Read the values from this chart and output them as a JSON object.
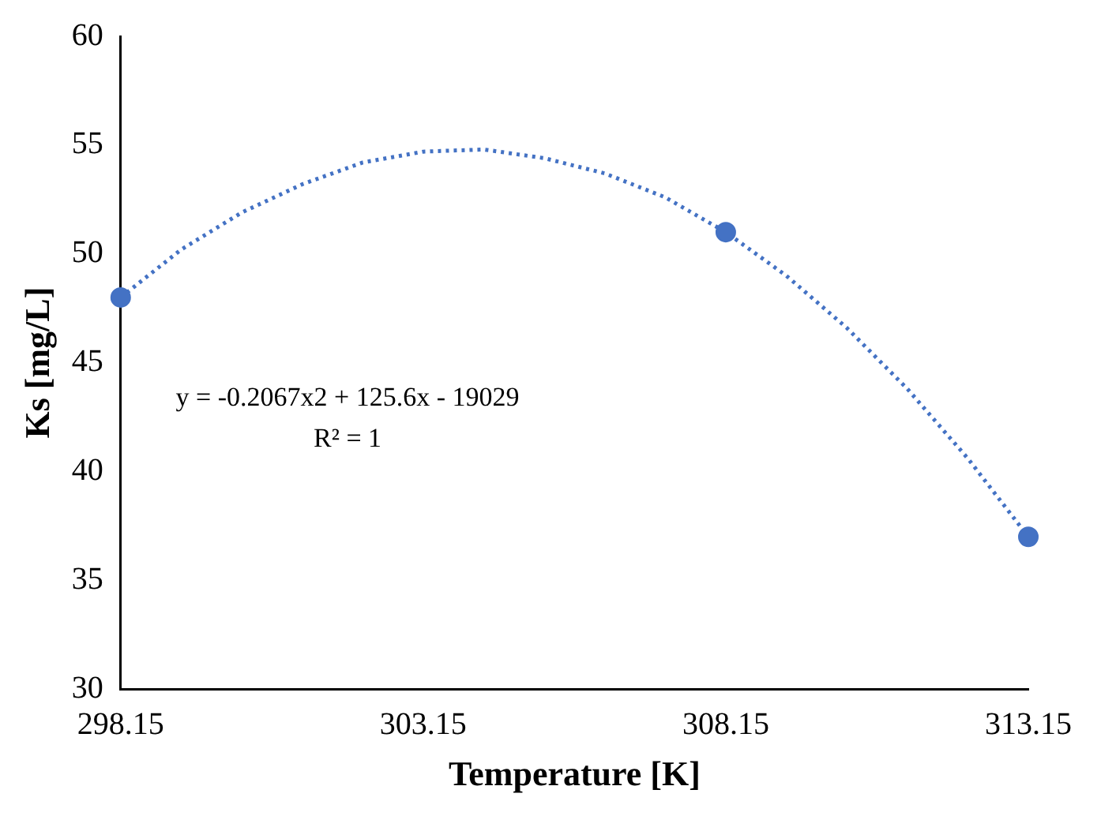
{
  "chart_data": {
    "type": "scatter",
    "xlabel": "Temperature [K]",
    "ylabel": "Ks [mg/L]",
    "xlim": [
      298.15,
      313.15
    ],
    "xticks": [
      298.15,
      303.15,
      308.15,
      313.15
    ],
    "ylim": [
      30,
      60
    ],
    "yticks": [
      30,
      35,
      40,
      45,
      50,
      55,
      60
    ],
    "annotations": [
      "y = -0.2067x2 + 125.6x - 19029",
      "R² = 1"
    ],
    "series": [
      {
        "type": "line",
        "color": "#4472c4",
        "line_style": "dotted",
        "marker": "none",
        "x": [
          298.15,
          299.15,
          300.15,
          301.15,
          302.15,
          303.15,
          304.15,
          305.15,
          306.15,
          307.15,
          308.15,
          309.15,
          310.15,
          311.15,
          312.15,
          313.15
        ],
        "values": [
          48,
          50.2,
          51.9,
          53.2,
          54.2,
          54.7,
          54.8,
          54.4,
          53.7,
          52.6,
          51,
          49,
          46.6,
          43.8,
          40.6,
          37
        ]
      },
      {
        "type": "scatter",
        "color": "#4472c4",
        "marker": "circle",
        "x": [
          298.15,
          308.15,
          313.15
        ],
        "values": [
          48,
          51,
          37
        ]
      }
    ]
  }
}
